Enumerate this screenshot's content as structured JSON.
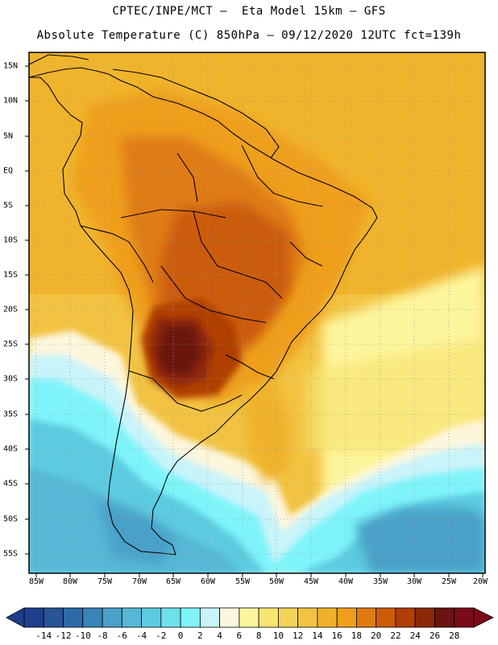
{
  "title": {
    "line1": "CPTEC/INPE/MCT —  Eta Model 15km — GFS",
    "line2": "Absolute Temperature (C) 850hPa — 09/12/2020 12UTC fct=139h"
  },
  "axes": {
    "lon_labels": [
      "85W",
      "80W",
      "75W",
      "70W",
      "65W",
      "60W",
      "55W",
      "50W",
      "45W",
      "40W",
      "35W",
      "30W",
      "25W",
      "20W"
    ],
    "lat_labels": [
      "15N",
      "10N",
      "5N",
      "EQ",
      "5S",
      "10S",
      "15S",
      "20S",
      "25S",
      "30S",
      "35S",
      "40S",
      "45S",
      "50S",
      "55S"
    ]
  },
  "colorbar": {
    "labels": [
      "-14",
      "-12",
      "-10",
      "-8",
      "-6",
      "-4",
      "-2",
      "0",
      "2",
      "4",
      "6",
      "8",
      "10",
      "12",
      "14",
      "16",
      "18",
      "20",
      "22",
      "24",
      "26",
      "28"
    ],
    "colors": [
      "#1f3e8c",
      "#275496",
      "#2e6ba6",
      "#3a84b8",
      "#4aa0c8",
      "#56b8d6",
      "#5ccbe0",
      "#6ee0ec",
      "#7ef4fa",
      "#c8f4fa",
      "#fdf6dd",
      "#fdf59c",
      "#f8e472",
      "#f5d35a",
      "#f2c342",
      "#f0b22a",
      "#ef9f1c",
      "#e07b12",
      "#cc5c0a",
      "#b03f06",
      "#8c2808",
      "#6b1410",
      "#7a0c18"
    ]
  }
}
